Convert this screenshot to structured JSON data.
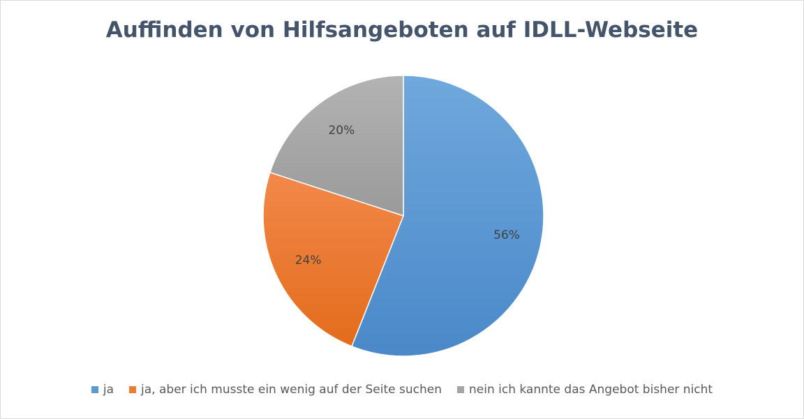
{
  "chart_data": {
    "type": "pie",
    "title": "Auffinden von Hilfsangeboten auf IDLL-Webseite",
    "categories": [
      "ja",
      "ja, aber ich musste ein wenig auf der Seite suchen",
      "nein ich kannte das Angebot bisher nicht"
    ],
    "values": [
      56,
      24,
      20
    ],
    "labels": [
      "56%",
      "24%",
      "20%"
    ],
    "colors": [
      "#5b9bd5",
      "#ed7d31",
      "#a5a5a5"
    ],
    "legend_position": "bottom"
  }
}
